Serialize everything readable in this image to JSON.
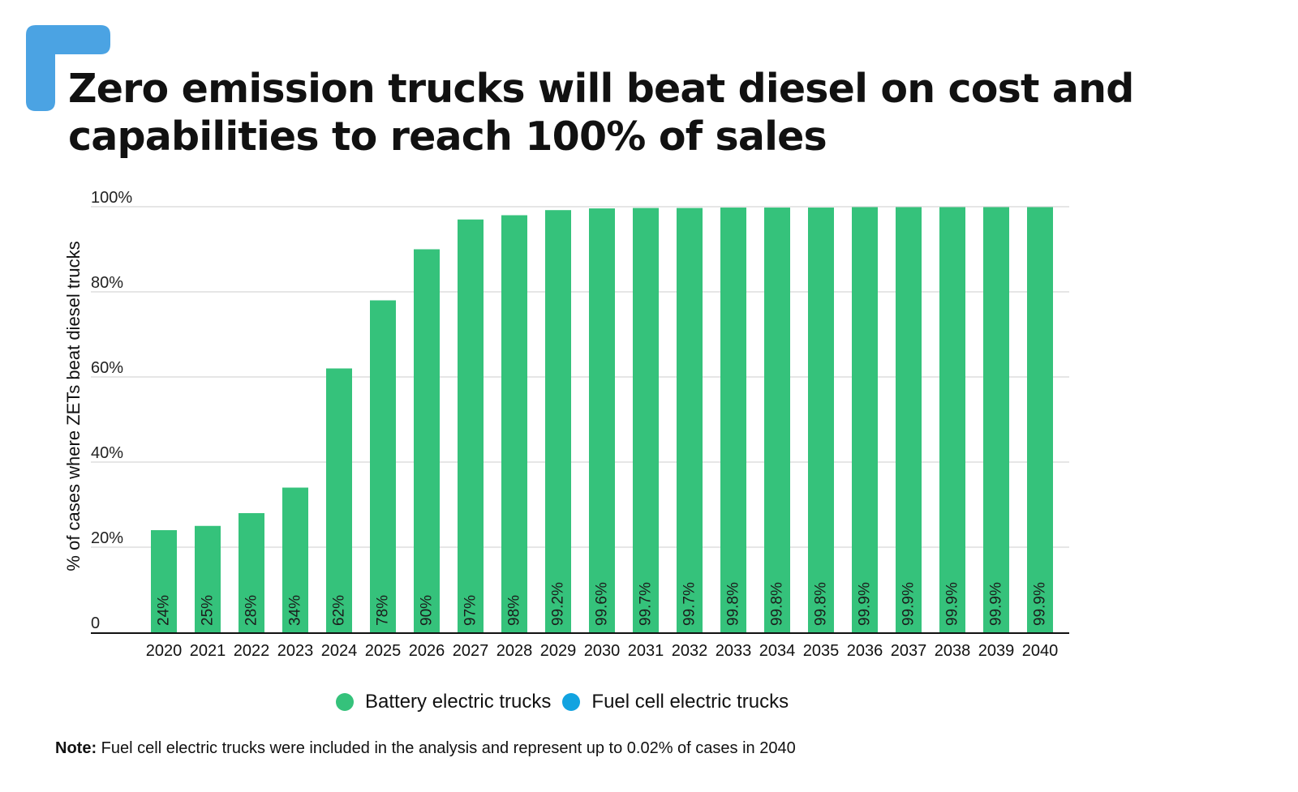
{
  "title_lines": [
    "Zero emission trucks will beat diesel on cost and",
    "capabilities to reach 100% of sales"
  ],
  "colors": {
    "accent": "#4ba3e3",
    "battery": "#35c27b",
    "fuel_cell": "#12a3e0",
    "grid": "#d6d6d6",
    "axis": "#111111"
  },
  "chart_data": {
    "type": "bar",
    "ylabel": "% of cases where ZETs beat diesel trucks",
    "xlabel": "",
    "ylim": [
      0,
      100
    ],
    "yticks": [
      {
        "value": 0,
        "label": "0"
      },
      {
        "value": 20,
        "label": "20%"
      },
      {
        "value": 40,
        "label": "40%"
      },
      {
        "value": 60,
        "label": "60%"
      },
      {
        "value": 80,
        "label": "80%"
      },
      {
        "value": 100,
        "label": "100%"
      }
    ],
    "grid": true,
    "legend_position": "bottom",
    "categories": [
      "2020",
      "2021",
      "2022",
      "2023",
      "2024",
      "2025",
      "2026",
      "2027",
      "2028",
      "2029",
      "2030",
      "2031",
      "2032",
      "2033",
      "2034",
      "2035",
      "2036",
      "2037",
      "2038",
      "2039",
      "2040"
    ],
    "series": [
      {
        "name": "Battery electric trucks",
        "values": [
          24,
          25,
          28,
          34,
          62,
          78,
          90,
          97,
          98,
          99.2,
          99.6,
          99.7,
          99.7,
          99.8,
          99.8,
          99.8,
          99.9,
          99.9,
          99.9,
          99.9,
          99.9
        ],
        "labels": [
          "24%",
          "25%",
          "28%",
          "34%",
          "62%",
          "78%",
          "90%",
          "97%",
          "98%",
          "99.2%",
          "99.6%",
          "99.7%",
          "99.7%",
          "99.8%",
          "99.8%",
          "99.8%",
          "99.9%",
          "99.9%",
          "99.9%",
          "99.9%",
          "99.9%"
        ]
      },
      {
        "name": "Fuel cell electric trucks",
        "values": [
          0,
          0,
          0,
          0,
          0,
          0,
          0,
          0,
          0,
          0,
          0,
          0,
          0,
          0,
          0,
          0,
          0,
          0,
          0,
          0,
          0.02
        ]
      }
    ]
  },
  "legend": [
    {
      "label": "Battery electric trucks",
      "color": "#35c27b"
    },
    {
      "label": "Fuel cell electric trucks",
      "color": "#12a3e0"
    }
  ],
  "note": {
    "prefix": "Note:",
    "text": " Fuel cell electric trucks were included in the analysis and represent up to 0.02% of cases in 2040"
  }
}
